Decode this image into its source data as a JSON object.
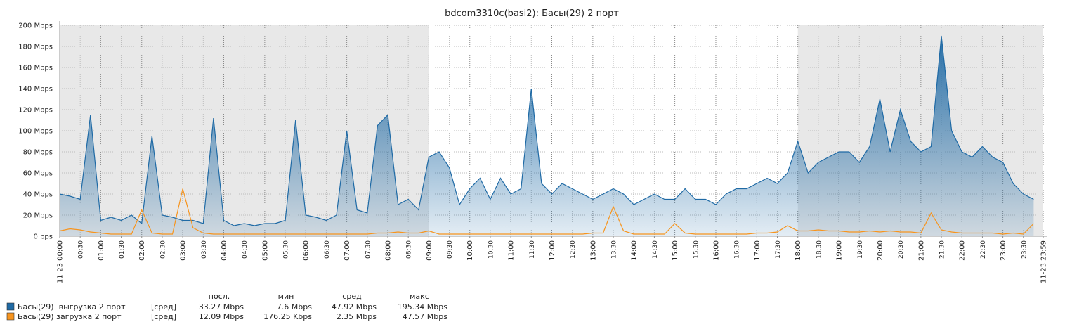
{
  "chart_data": {
    "type": "area",
    "title": "bdcom3310c(basi2): Басы(29) 2 порт",
    "x": [
      0,
      0.25,
      0.5,
      0.75,
      1,
      1.25,
      1.5,
      1.75,
      2,
      2.25,
      2.5,
      2.75,
      3,
      3.25,
      3.5,
      3.75,
      4,
      4.25,
      4.5,
      4.75,
      5,
      5.25,
      5.5,
      5.75,
      6,
      6.25,
      6.5,
      6.75,
      7,
      7.25,
      7.5,
      7.75,
      8,
      8.25,
      8.5,
      8.75,
      9,
      9.25,
      9.5,
      9.75,
      10,
      10.25,
      10.5,
      10.75,
      11,
      11.25,
      11.5,
      11.75,
      12,
      12.25,
      12.5,
      12.75,
      13,
      13.25,
      13.5,
      13.75,
      14,
      14.25,
      14.5,
      14.75,
      15,
      15.25,
      15.5,
      15.75,
      16,
      16.25,
      16.5,
      16.75,
      17,
      17.25,
      17.5,
      17.75,
      18,
      18.25,
      18.5,
      18.75,
      19,
      19.25,
      19.5,
      19.75,
      20,
      20.25,
      20.5,
      20.75,
      21,
      21.25,
      21.5,
      21.75,
      22,
      22.25,
      22.5,
      22.75,
      23,
      23.25,
      23.5,
      23.75
    ],
    "series": [
      {
        "name": "Басы(29)  выгрузка 2 порт",
        "color": "#1f6aa5",
        "fill": true,
        "stats": [
          "[сред]",
          "33.27 Mbps",
          "7.6 Mbps",
          "47.92 Mbps",
          "195.34 Mbps"
        ],
        "values": [
          40,
          38,
          35,
          115,
          15,
          18,
          15,
          20,
          12,
          95,
          20,
          18,
          15,
          15,
          12,
          112,
          15,
          10,
          12,
          10,
          12,
          12,
          15,
          110,
          20,
          18,
          15,
          20,
          100,
          25,
          22,
          105,
          115,
          30,
          35,
          25,
          75,
          80,
          65,
          30,
          45,
          55,
          35,
          55,
          40,
          45,
          140,
          50,
          40,
          50,
          45,
          40,
          35,
          40,
          45,
          40,
          30,
          35,
          40,
          35,
          35,
          45,
          35,
          35,
          30,
          40,
          45,
          45,
          50,
          55,
          50,
          60,
          90,
          60,
          70,
          75,
          80,
          80,
          70,
          85,
          130,
          80,
          120,
          90,
          80,
          85,
          190,
          100,
          80,
          75,
          85,
          75,
          70,
          50,
          40,
          35
        ]
      },
      {
        "name": "Басы(29) загрузка 2 порт",
        "color": "#f7941d",
        "fill": false,
        "stats": [
          "[сред]",
          "12.09 Mbps",
          "176.25 Kbps",
          "2.35 Mbps",
          "47.57 Mbps"
        ],
        "values": [
          5,
          7,
          6,
          4,
          3,
          2,
          2,
          2,
          25,
          3,
          2,
          2,
          45,
          8,
          3,
          2,
          2,
          2,
          2,
          2,
          2,
          2,
          2,
          2,
          2,
          2,
          2,
          2,
          2,
          2,
          2,
          3,
          3,
          4,
          3,
          3,
          5,
          2,
          2,
          2,
          2,
          2,
          2,
          2,
          2,
          2,
          2,
          2,
          2,
          2,
          2,
          2,
          3,
          3,
          28,
          5,
          2,
          2,
          2,
          2,
          12,
          3,
          2,
          2,
          2,
          2,
          2,
          2,
          3,
          3,
          4,
          10,
          5,
          5,
          6,
          5,
          5,
          4,
          4,
          5,
          4,
          5,
          4,
          4,
          3,
          22,
          6,
          4,
          3,
          3,
          3,
          3,
          2,
          3,
          2,
          12
        ]
      }
    ],
    "legend_headers": [
      "посл.",
      "мин",
      "сред",
      "макс"
    ],
    "shaded": [
      [
        0,
        9
      ],
      [
        18,
        23.9833
      ]
    ],
    "grid": true,
    "xlim": [
      0,
      23.9833
    ],
    "ylim": [
      0,
      200
    ],
    "yticks": [
      {
        "value": 0,
        "label": "0 bps"
      },
      {
        "value": 20,
        "label": "20 Mbps"
      },
      {
        "value": 40,
        "label": "40 Mbps"
      },
      {
        "value": 60,
        "label": "60 Mbps"
      },
      {
        "value": 80,
        "label": "80 Mbps"
      },
      {
        "value": 100,
        "label": "100 Mbps"
      },
      {
        "value": 120,
        "label": "120 Mbps"
      },
      {
        "value": 140,
        "label": "140 Mbps"
      },
      {
        "value": 160,
        "label": "160 Mbps"
      },
      {
        "value": 180,
        "label": "180 Mbps"
      },
      {
        "value": 200,
        "label": "200 Mbps"
      }
    ],
    "xticks": [
      {
        "value": 0,
        "label": "11-23 00:00"
      },
      {
        "value": 0.5,
        "label": "00:30"
      },
      {
        "value": 1,
        "label": "01:00"
      },
      {
        "value": 1.5,
        "label": "01:30"
      },
      {
        "value": 2,
        "label": "02:00"
      },
      {
        "value": 2.5,
        "label": "02:30"
      },
      {
        "value": 3,
        "label": "03:00"
      },
      {
        "value": 3.5,
        "label": "03:30"
      },
      {
        "value": 4,
        "label": "04:00"
      },
      {
        "value": 4.5,
        "label": "04:30"
      },
      {
        "value": 5,
        "label": "05:00"
      },
      {
        "value": 5.5,
        "label": "05:30"
      },
      {
        "value": 6,
        "label": "06:00"
      },
      {
        "value": 6.5,
        "label": "06:30"
      },
      {
        "value": 7,
        "label": "07:00"
      },
      {
        "value": 7.5,
        "label": "07:30"
      },
      {
        "value": 8,
        "label": "08:00"
      },
      {
        "value": 8.5,
        "label": "08:30"
      },
      {
        "value": 9,
        "label": "09:00"
      },
      {
        "value": 9.5,
        "label": "09:30"
      },
      {
        "value": 10,
        "label": "10:00"
      },
      {
        "value": 10.5,
        "label": "10:30"
      },
      {
        "value": 11,
        "label": "11:00"
      },
      {
        "value": 11.5,
        "label": "11:30"
      },
      {
        "value": 12,
        "label": "12:00"
      },
      {
        "value": 12.5,
        "label": "12:30"
      },
      {
        "value": 13,
        "label": "13:00"
      },
      {
        "value": 13.5,
        "label": "13:30"
      },
      {
        "value": 14,
        "label": "14:00"
      },
      {
        "value": 14.5,
        "label": "14:30"
      },
      {
        "value": 15,
        "label": "15:00"
      },
      {
        "value": 15.5,
        "label": "15:30"
      },
      {
        "value": 16,
        "label": "16:00"
      },
      {
        "value": 16.5,
        "label": "16:30"
      },
      {
        "value": 17,
        "label": "17:00"
      },
      {
        "value": 17.5,
        "label": "17:30"
      },
      {
        "value": 18,
        "label": "18:00"
      },
      {
        "value": 18.5,
        "label": "18:30"
      },
      {
        "value": 19,
        "label": "19:00"
      },
      {
        "value": 19.5,
        "label": "19:30"
      },
      {
        "value": 20,
        "label": "20:00"
      },
      {
        "value": 20.5,
        "label": "20:30"
      },
      {
        "value": 21,
        "label": "21:00"
      },
      {
        "value": 21.5,
        "label": "21:30"
      },
      {
        "value": 22,
        "label": "22:00"
      },
      {
        "value": 22.5,
        "label": "22:30"
      },
      {
        "value": 23,
        "label": "23:00"
      },
      {
        "value": 23.5,
        "label": "23:30"
      },
      {
        "value": 23.9833,
        "label": "11-23 23:59"
      }
    ]
  }
}
